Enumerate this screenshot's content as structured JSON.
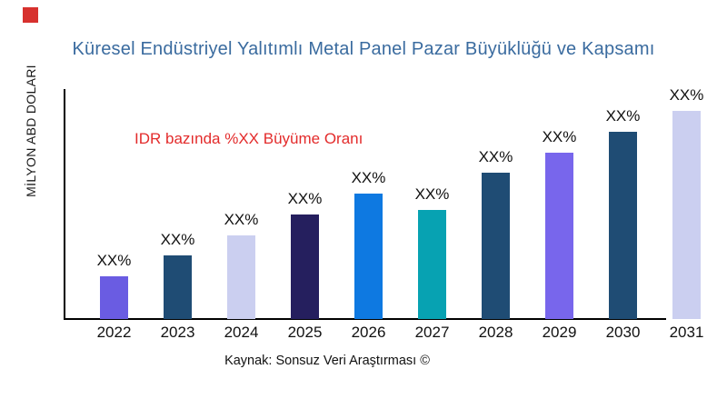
{
  "colors": {
    "title": "#3A6B9F",
    "annotation": "#E32B2B",
    "axis": "#000000",
    "red_square": "#D7312E",
    "text": "#111111"
  },
  "red_square_marker": "red-square-marker",
  "chart_data": {
    "type": "bar",
    "title": "Küresel Endüstriyel Yalıtımlı Metal Panel Pazar Büyüklüğü ve Kapsamı",
    "xlabel": "",
    "ylabel": "MİLYON ABD DOLARI",
    "annotation": "IDR bazında %XX Büyüme Oranı",
    "source": "Kaynak: Sonsuz Veri Araştırması ©",
    "legend": false,
    "grid": false,
    "axis_note": "no numeric ticks shown; values are placeholders (XX%)",
    "categories": [
      "2022",
      "2023",
      "2024",
      "2025",
      "2026",
      "2027",
      "2028",
      "2029",
      "2030",
      "2031"
    ],
    "bar_labels": [
      "XX%",
      "XX%",
      "XX%",
      "XX%",
      "XX%",
      "XX%",
      "XX%",
      "XX%",
      "XX%",
      "XX%"
    ],
    "relative_heights": [
      20.5,
      30.6,
      40.2,
      50.2,
      60.3,
      52.4,
      70.3,
      79.9,
      90,
      100
    ],
    "bar_colors": [
      "#6A5CE2",
      "#1F4C74",
      "#CBCFF0",
      "#251F5E",
      "#0E79E1",
      "#07A2B2",
      "#1F4C74",
      "#7866EC",
      "#1F4C74",
      "#CBCFF0"
    ]
  }
}
